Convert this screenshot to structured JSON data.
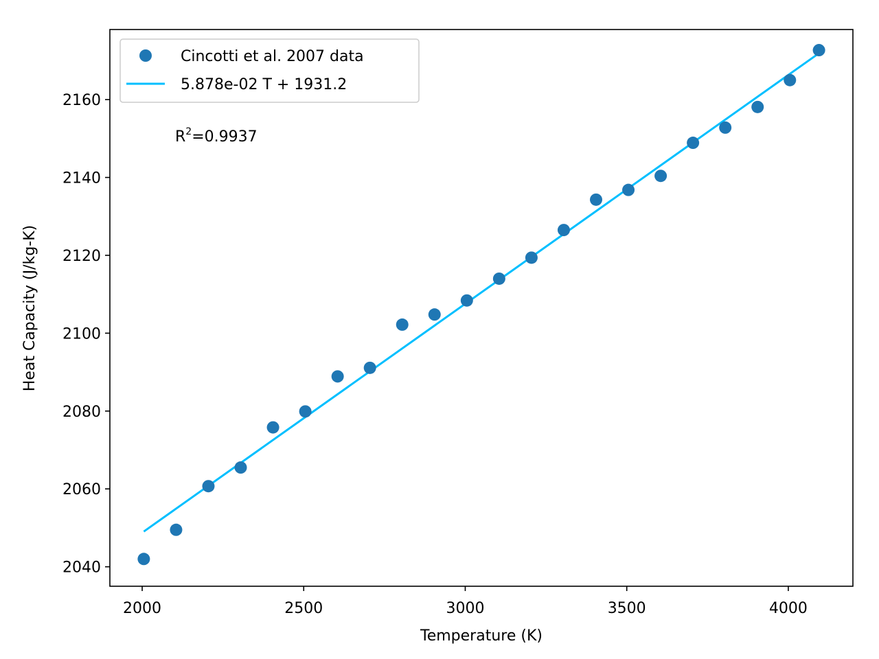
{
  "chart_data": {
    "type": "scatter",
    "title": "",
    "xlabel": "Temperature (K)",
    "ylabel": "Heat Capacity (J/kg-K)",
    "xlim": [
      1900,
      4200
    ],
    "ylim": [
      2035,
      2178
    ],
    "xticks": [
      2000,
      2500,
      3000,
      3500,
      4000
    ],
    "yticks": [
      2040,
      2060,
      2080,
      2100,
      2120,
      2140,
      2160
    ],
    "grid": false,
    "legend_position": "top-left",
    "series": [
      {
        "name": "Cincotti et al. 2007 data",
        "type": "scatter",
        "color": "#1f77b4",
        "x": [
          2005,
          2105,
          2205,
          2305,
          2405,
          2505,
          2605,
          2705,
          2805,
          2905,
          3005,
          3105,
          3205,
          3305,
          3405,
          3505,
          3605,
          3705,
          3805,
          3905,
          4005,
          4095
        ],
        "y": [
          2042.0,
          2049.5,
          2060.7,
          2065.5,
          2075.8,
          2079.9,
          2088.9,
          2091.1,
          2102.2,
          2104.8,
          2108.4,
          2114.0,
          2119.4,
          2126.5,
          2134.3,
          2136.8,
          2140.4,
          2148.9,
          2152.8,
          2158.1,
          2165.0,
          2172.7
        ]
      },
      {
        "name": "5.878e-02 T + 1931.2",
        "type": "line",
        "color": "#00bfff",
        "slope": 0.05878,
        "intercept": 1931.2,
        "x": [
          2005,
          4095
        ]
      }
    ],
    "annotation": {
      "base": "R",
      "superscript": "2",
      "rest": "=0.9937"
    }
  }
}
